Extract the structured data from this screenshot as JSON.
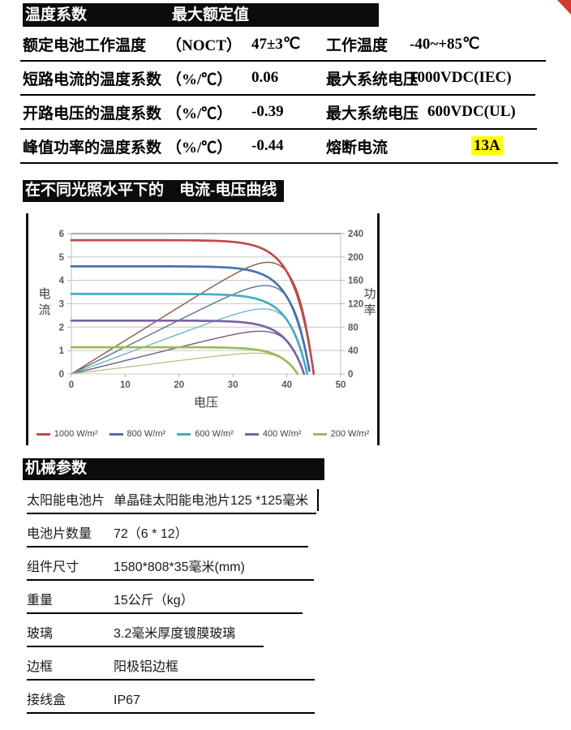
{
  "page": {
    "accent_red": "#d03a32",
    "highlight_yellow": "#ffff00"
  },
  "section_temp": {
    "header_left": "温度系数",
    "header_right": "最大额定值",
    "rows": [
      {
        "label": "额定电池工作温度",
        "unit": "（NOCT）",
        "value": "47±3℃",
        "label2": "工作温度",
        "value2": "-40~+85℃"
      },
      {
        "label": "短路电流的温度系数",
        "unit": "（%/℃）",
        "value": "0.06",
        "label2": "最大系统电压",
        "value2": "1000VDC(IEC)"
      },
      {
        "label": "开路电压的温度系数",
        "unit": "（%/℃）",
        "value": "-0.39",
        "label2": "最大系统电压",
        "value2": "600VDC(UL)"
      },
      {
        "label": "峰值功率的温度系数",
        "unit": "（%/℃）",
        "value": "-0.44",
        "label2": "熔断电流",
        "value2": "13A"
      }
    ]
  },
  "section_curve": {
    "header": "在不同光照水平下的　电流-电压曲线"
  },
  "chart_data": {
    "type": "line",
    "title": "在不同光照水平下的 电流-电压曲线",
    "xlabel": "电压",
    "ylabel_left": "电流",
    "ylabel_right": "功率",
    "xlim": [
      0,
      50
    ],
    "ylim_left": [
      0,
      6
    ],
    "ylim_right": [
      0,
      240
    ],
    "xticks": [
      0,
      10,
      20,
      30,
      40,
      50
    ],
    "yticks_left": [
      0,
      1,
      2,
      3,
      4,
      5,
      6
    ],
    "yticks_right": [
      0,
      40,
      80,
      120,
      160,
      200,
      240
    ],
    "grid": "horizontal",
    "legend_position": "bottom",
    "series": [
      {
        "name": "1000 W/m²",
        "color": "#be4b48",
        "power_color": "#8a5742",
        "isc": 5.72,
        "voc": 45.0,
        "vmp": 36.5,
        "pmax": 193
      },
      {
        "name": "800 W/m²",
        "color": "#4673b0",
        "power_color": "#5a7294",
        "isc": 4.6,
        "voc": 44.3,
        "vmp": 36.0,
        "pmax": 153
      },
      {
        "name": "600 W/m²",
        "color": "#45acc5",
        "power_color": "#6fb7cc",
        "isc": 3.42,
        "voc": 43.8,
        "vmp": 35.5,
        "pmax": 114
      },
      {
        "name": "400 W/m²",
        "color": "#7b62a5",
        "power_color": "#6d5a87",
        "isc": 2.28,
        "voc": 43.2,
        "vmp": 35.0,
        "pmax": 76
      },
      {
        "name": "200 W/m²",
        "color": "#9bbb59",
        "power_color": "#b9c98a",
        "isc": 1.14,
        "voc": 42.0,
        "vmp": 34.0,
        "pmax": 37
      }
    ]
  },
  "section_mech": {
    "header": "机械参数",
    "rows": [
      {
        "label": "太阳能电池片",
        "value": "单晶硅太阳能电池片125 *125毫米"
      },
      {
        "label": "电池片数量",
        "value": "72（6 * 12）"
      },
      {
        "label": "组件尺寸",
        "value": "1580*808*35毫米(mm)"
      },
      {
        "label": "重量",
        "value": "15公斤（kg）"
      },
      {
        "label": "玻璃",
        "value": "3.2毫米厚度镀膜玻璃"
      },
      {
        "label": "边框",
        "value": "阳极铝边框"
      },
      {
        "label": "接线盒",
        "value": "IP67"
      }
    ]
  }
}
